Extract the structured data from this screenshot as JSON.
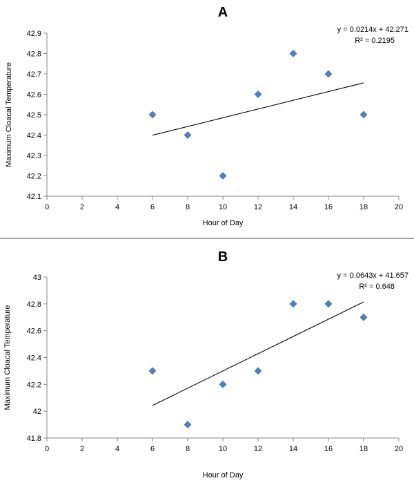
{
  "chart_data": [
    {
      "type": "scatter",
      "title": "A",
      "xlabel": "Hour of Day",
      "ylabel": "Maximum Cloacal Temperature",
      "xlim": [
        0,
        20
      ],
      "ylim": [
        42.1,
        42.9
      ],
      "xticks": [
        "0",
        "2",
        "4",
        "6",
        "8",
        "10",
        "12",
        "14",
        "16",
        "18",
        "20"
      ],
      "yticks": [
        "42.1",
        "42.2",
        "42.3",
        "42.4",
        "42.5",
        "42.6",
        "42.7",
        "42.8",
        "42.9"
      ],
      "points": [
        {
          "x": 6,
          "y": 42.5
        },
        {
          "x": 8,
          "y": 42.4
        },
        {
          "x": 10,
          "y": 42.2
        },
        {
          "x": 12,
          "y": 42.6
        },
        {
          "x": 14,
          "y": 42.8
        },
        {
          "x": 16,
          "y": 42.7
        },
        {
          "x": 18,
          "y": 42.5
        }
      ],
      "trendline": {
        "slope": 0.0214,
        "intercept": 42.271,
        "x_start": 6,
        "x_end": 18,
        "equation": "y = 0.0214x + 42.271",
        "r2_label": "R² = 0.2195"
      },
      "marker_color": "#4f81bd",
      "grid": false
    },
    {
      "type": "scatter",
      "title": "B",
      "xlabel": "Hour of Day",
      "ylabel": "Maximum Cloacal Temperature",
      "xlim": [
        0,
        20
      ],
      "ylim": [
        41.8,
        43
      ],
      "xticks": [
        "0",
        "2",
        "4",
        "6",
        "8",
        "10",
        "12",
        "14",
        "16",
        "18",
        "20"
      ],
      "yticks": [
        "41.8",
        "42",
        "42.2",
        "42.4",
        "42.6",
        "42.8",
        "43"
      ],
      "points": [
        {
          "x": 6,
          "y": 42.3
        },
        {
          "x": 8,
          "y": 41.9
        },
        {
          "x": 10,
          "y": 42.2
        },
        {
          "x": 12,
          "y": 42.3
        },
        {
          "x": 14,
          "y": 42.8
        },
        {
          "x": 16,
          "y": 42.8
        },
        {
          "x": 18,
          "y": 42.7
        }
      ],
      "trendline": {
        "slope": 0.0643,
        "intercept": 41.657,
        "x_start": 6,
        "x_end": 18,
        "equation": "y = 0.0643x + 41.657",
        "r2_label": "R² = 0.648"
      },
      "marker_color": "#4f81bd",
      "grid": false
    }
  ]
}
